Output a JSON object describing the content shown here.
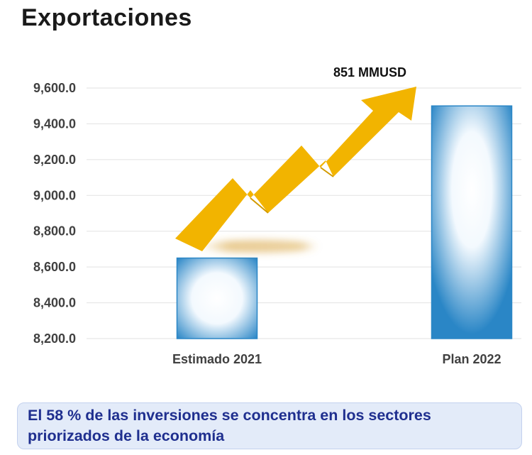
{
  "title": "Exportaciones",
  "callout_text": "El 58 % de las inversiones se concentra en los sectores priorizados de la economía",
  "colors": {
    "bar_edge": "#2a86c6",
    "bar_center": "#ffffff",
    "arrow": "#f2b400",
    "grid": "#e2e2e2",
    "callout_text": "#1f2f8f",
    "callout_bg": "#e3ebf9"
  },
  "chart_data": {
    "type": "bar",
    "title": "Exportaciones",
    "categories": [
      "Estimado 2021",
      "Plan 2022"
    ],
    "values": [
      8650,
      9500
    ],
    "ylim": [
      8200,
      9600
    ],
    "yticks": [
      8200,
      8400,
      8600,
      8800,
      9000,
      9200,
      9400,
      9600
    ],
    "ytick_labels": [
      "8,200.0",
      "8,400.0",
      "8,600.0",
      "8,800.0",
      "9,000.0",
      "9,200.0",
      "9,400.0",
      "9,600.0"
    ],
    "grid": true,
    "annotation": {
      "text": "851 MMUSD",
      "symbol": "up-arrow"
    }
  }
}
